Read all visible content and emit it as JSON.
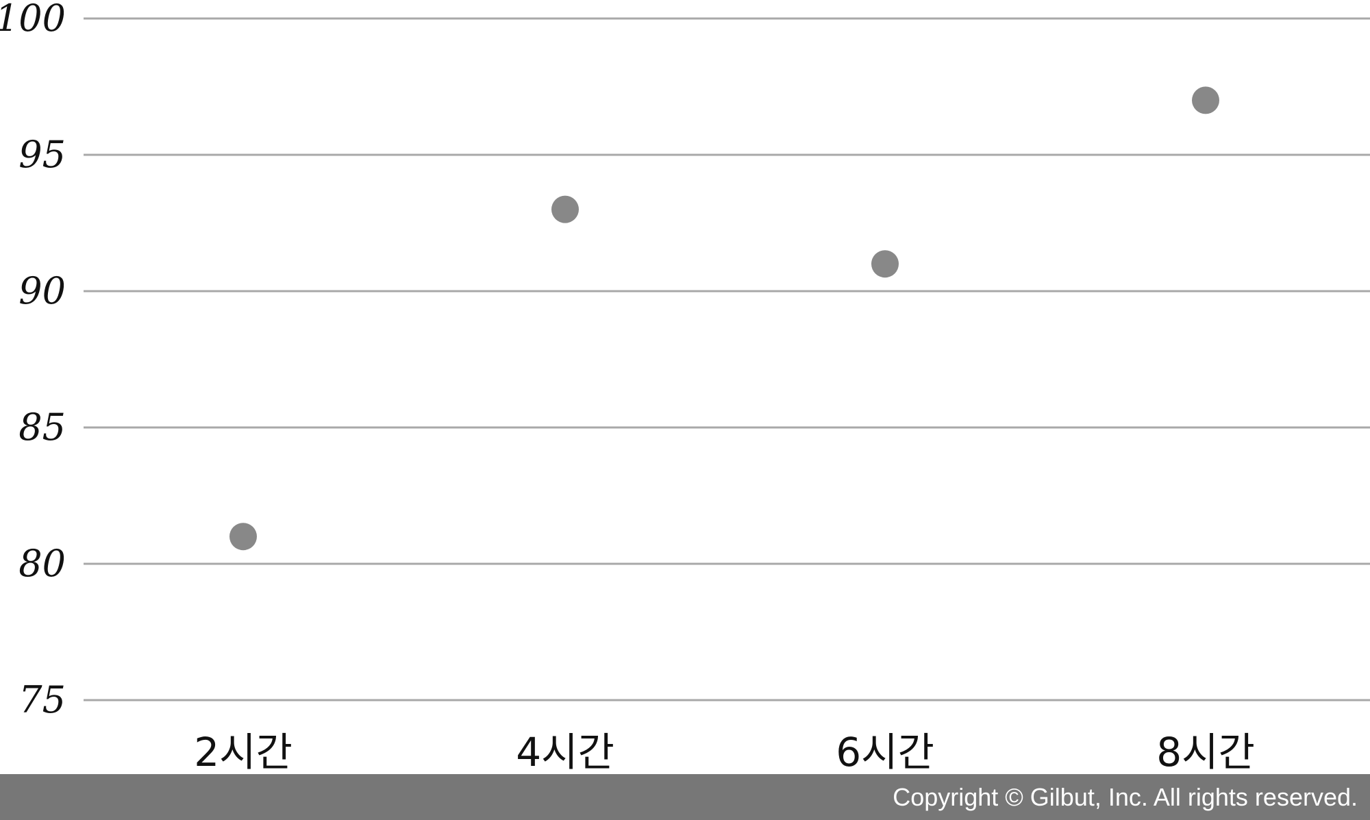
{
  "chart_data": {
    "type": "scatter",
    "categories": [
      "2시간",
      "4시간",
      "6시간",
      "8시간"
    ],
    "values": [
      81,
      93,
      91,
      97
    ],
    "ylim": [
      75,
      100
    ],
    "yticks": [
      "75",
      "80",
      "85",
      "90",
      "95",
      "100"
    ],
    "grid": true,
    "legend": "none",
    "colors": {
      "point": "#888888",
      "grid": "#a8a8a8"
    }
  },
  "footer": {
    "copyright": "Copyright © Gilbut, Inc. All rights reserved."
  }
}
